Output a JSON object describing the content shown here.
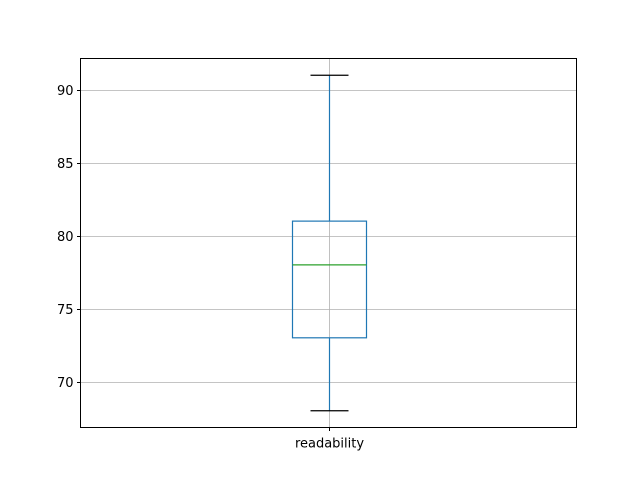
{
  "chart_data": {
    "type": "box",
    "title": "",
    "xlabel": "",
    "ylabel": "",
    "categories": [
      "readability"
    ],
    "boxes": [
      {
        "category": "readability",
        "whisker_low": 68,
        "q1": 73,
        "median": 78,
        "q3": 81,
        "whisker_high": 91
      }
    ],
    "ylim": [
      66.85,
      92.15
    ],
    "yticks": [
      70,
      75,
      80,
      85,
      90
    ],
    "grid": true,
    "colors": {
      "box": "#1f77b4",
      "median": "#2ca02c",
      "caps": "#000000",
      "grid": "#b0b0b0"
    }
  }
}
